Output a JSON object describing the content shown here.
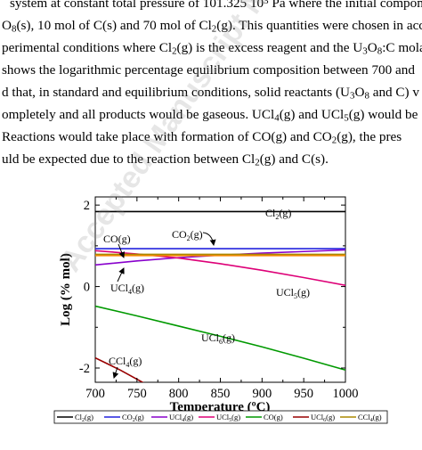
{
  "paragraph": {
    "line1": [
      "system at constant total pressure of 101.325 10",
      "3",
      " Pa where the initial compond"
    ],
    "line2": [
      "O",
      "8",
      "(s), 10 mol of C(s) and 70 mol of Cl",
      "2",
      "(g). This quantities were chosen in acc"
    ],
    "line3": [
      "perimental conditions where Cl",
      "2",
      "(g) is the excess reagent and the U",
      "3",
      "O",
      "8",
      ":C mola"
    ],
    "line4": "shows the logarithmic percentage equilibrium composition between 700 and",
    "line5": [
      "d that, in standard and equilibrium conditions, solid reactants (U",
      "3",
      "O",
      "8",
      " and C) v"
    ],
    "line6": [
      "ompletely and all products would be gaseous. UCl",
      "4",
      "(g) and UCl",
      "5",
      "(g) would be"
    ],
    "line7": [
      "Reactions would take place with formation of CO(g) and CO",
      "2",
      "(g), the pres"
    ],
    "line8": [
      "uld be expected due to the reaction between Cl",
      "2",
      "(g) and C(s)."
    ]
  },
  "figure": {
    "xlabel": "Temperature (ºC)",
    "ylabel": "Log (% mol)",
    "x_ticks": [
      "700",
      "750",
      "800",
      "850",
      "900",
      "950",
      "1000"
    ],
    "y_ticks": [
      "2",
      "0",
      "-2"
    ],
    "annotations": {
      "cl2": [
        "Cl",
        "2",
        "(g)"
      ],
      "co2": [
        "CO",
        "2",
        "(g)"
      ],
      "co": "CO(g)",
      "ucl4": [
        "UCl",
        "4",
        "(g)"
      ],
      "ucl5": [
        "UCl",
        "5",
        "(g)"
      ],
      "ucl6": [
        "UCl",
        "6",
        "(g)"
      ],
      "ccl4": [
        "CCl",
        "4",
        "(g)"
      ]
    },
    "legend_labels": [
      [
        "Cl",
        "2",
        "(g)"
      ],
      [
        "CO",
        "2",
        "(g)"
      ],
      [
        "UCl",
        "4",
        "(g)"
      ],
      [
        "UCl",
        "5",
        "(g)"
      ],
      [
        "CO(g)"
      ],
      [
        "UCl",
        "6",
        "(g)"
      ],
      [
        "CCl",
        "4",
        "(g)"
      ]
    ],
    "watermark": "Accepted Manuscript Not Copyedited"
  },
  "chart_data": {
    "type": "line",
    "xlabel": "Temperature (ºC)",
    "ylabel": "Log (% mol)",
    "xlim": [
      700,
      1000
    ],
    "ylim": [
      -2.35,
      2.2
    ],
    "x_ticks": [
      700,
      750,
      800,
      850,
      900,
      950,
      1000
    ],
    "y_ticks": [
      -2,
      0,
      2
    ],
    "series": [
      {
        "name": "Cl2(g)",
        "color": "#000000",
        "x": [
          700,
          1000
        ],
        "y": [
          1.84,
          1.84
        ]
      },
      {
        "name": "CO2(g)",
        "color": "#2222dd",
        "x": [
          700,
          1000
        ],
        "y": [
          0.93,
          0.93
        ]
      },
      {
        "name": "UCl4(g)",
        "color": "#8800cc",
        "x": [
          700,
          750,
          800,
          850,
          900,
          950,
          1000
        ],
        "y": [
          0.53,
          0.63,
          0.71,
          0.77,
          0.82,
          0.86,
          0.9
        ]
      },
      {
        "name": "UCl5(g)",
        "color": "#dd0077",
        "x": [
          700,
          750,
          800,
          850,
          900,
          950,
          1000
        ],
        "y": [
          0.88,
          0.8,
          0.7,
          0.56,
          0.4,
          0.22,
          0.03
        ]
      },
      {
        "name": "CO(g)",
        "color": "#ff8800",
        "x": [
          700,
          1000
        ],
        "y": [
          0.76,
          0.76
        ]
      },
      {
        "name": "UCl6(g)",
        "color": "#009900",
        "x": [
          700,
          750,
          800,
          850,
          900,
          950,
          1000
        ],
        "y": [
          -0.48,
          -0.72,
          -0.97,
          -1.22,
          -1.48,
          -1.76,
          -2.05
        ]
      },
      {
        "name": "CCl4(g)",
        "color": "#990000",
        "x": [
          700,
          730,
          770
        ],
        "y": [
          -1.75,
          -2.05,
          -2.5
        ]
      },
      {
        "name": "",
        "color": "#aa8800",
        "x": [
          700,
          1000
        ],
        "y": [
          0.79,
          0.79
        ]
      }
    ]
  }
}
